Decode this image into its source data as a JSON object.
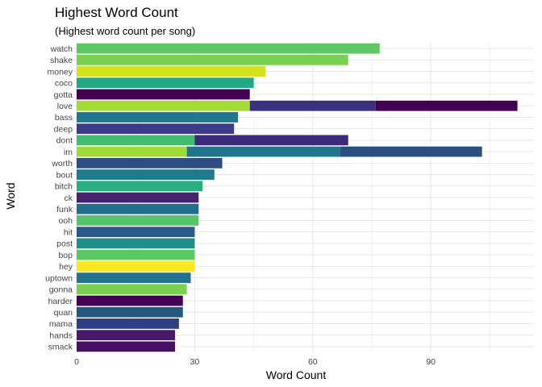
{
  "chart_data": {
    "type": "bar",
    "orientation": "horizontal",
    "stacked": true,
    "title": "Highest Word Count",
    "subtitle": "(Highest word count per song)",
    "xlabel": "Word Count",
    "ylabel": "Word",
    "xlim": [
      0,
      117
    ],
    "xticks": [
      0,
      30,
      60,
      90
    ],
    "grid": true,
    "legend": "none",
    "categories": [
      "watch",
      "shake",
      "money",
      "coco",
      "gotta",
      "love",
      "bass",
      "deep",
      "dont",
      "im",
      "worth",
      "bout",
      "bitch",
      "ck",
      "funk",
      "ooh",
      "hit",
      "post",
      "bop",
      "hey",
      "uptown",
      "gonna",
      "harder",
      "quan",
      "mama",
      "hands",
      "smack"
    ],
    "bars": [
      {
        "word": "watch",
        "segments": [
          {
            "value": 77,
            "color": "#5ec962"
          }
        ]
      },
      {
        "word": "shake",
        "segments": [
          {
            "value": 69,
            "color": "#7ad151"
          }
        ]
      },
      {
        "word": "money",
        "segments": [
          {
            "value": 48,
            "color": "#d2e21b"
          }
        ]
      },
      {
        "word": "coco",
        "segments": [
          {
            "value": 45,
            "color": "#22a884"
          }
        ]
      },
      {
        "word": "gotta",
        "segments": [
          {
            "value": 44,
            "color": "#440154"
          }
        ]
      },
      {
        "word": "love",
        "segments": [
          {
            "value": 44,
            "color": "#a5db36"
          },
          {
            "value": 32,
            "color": "#3b2f7f"
          },
          {
            "value": 36,
            "color": "#440154"
          }
        ]
      },
      {
        "word": "bass",
        "segments": [
          {
            "value": 41,
            "color": "#21778e"
          }
        ]
      },
      {
        "word": "deep",
        "segments": [
          {
            "value": 40,
            "color": "#3b3b8a"
          }
        ]
      },
      {
        "word": "dont",
        "segments": [
          {
            "value": 30,
            "color": "#40bd72"
          },
          {
            "value": 39,
            "color": "#3b2a7b"
          }
        ]
      },
      {
        "word": "im",
        "segments": [
          {
            "value": 28,
            "color": "#a0da39"
          },
          {
            "value": 39,
            "color": "#21768e"
          },
          {
            "value": 36,
            "color": "#2c4f82"
          }
        ]
      },
      {
        "word": "worth",
        "segments": [
          {
            "value": 37,
            "color": "#2d4c83"
          }
        ]
      },
      {
        "word": "bout",
        "segments": [
          {
            "value": 35,
            "color": "#1f7a8c"
          }
        ]
      },
      {
        "word": "bitch",
        "segments": [
          {
            "value": 32,
            "color": "#2aae80"
          }
        ]
      },
      {
        "word": "ck",
        "segments": [
          {
            "value": 31,
            "color": "#45236f"
          }
        ]
      },
      {
        "word": "funk",
        "segments": [
          {
            "value": 31,
            "color": "#216f8e"
          }
        ]
      },
      {
        "word": "ooh",
        "segments": [
          {
            "value": 31,
            "color": "#54c568"
          }
        ]
      },
      {
        "word": "hit",
        "segments": [
          {
            "value": 30,
            "color": "#2a5a8a"
          }
        ]
      },
      {
        "word": "post",
        "segments": [
          {
            "value": 30,
            "color": "#21908c"
          }
        ]
      },
      {
        "word": "bop",
        "segments": [
          {
            "value": 30,
            "color": "#5cc863"
          }
        ]
      },
      {
        "word": "hey",
        "segments": [
          {
            "value": 30,
            "color": "#fde725"
          }
        ]
      },
      {
        "word": "uptown",
        "segments": [
          {
            "value": 29,
            "color": "#21728e"
          }
        ]
      },
      {
        "word": "gonna",
        "segments": [
          {
            "value": 28,
            "color": "#7ad151"
          }
        ]
      },
      {
        "word": "harder",
        "segments": [
          {
            "value": 27,
            "color": "#440154"
          }
        ]
      },
      {
        "word": "quan",
        "segments": [
          {
            "value": 27,
            "color": "#23577f"
          }
        ]
      },
      {
        "word": "mama",
        "segments": [
          {
            "value": 26,
            "color": "#2f3f84"
          }
        ]
      },
      {
        "word": "hands",
        "segments": [
          {
            "value": 25,
            "color": "#481a6c"
          }
        ]
      },
      {
        "word": "smack",
        "segments": [
          {
            "value": 25,
            "color": "#471063"
          }
        ]
      }
    ]
  }
}
